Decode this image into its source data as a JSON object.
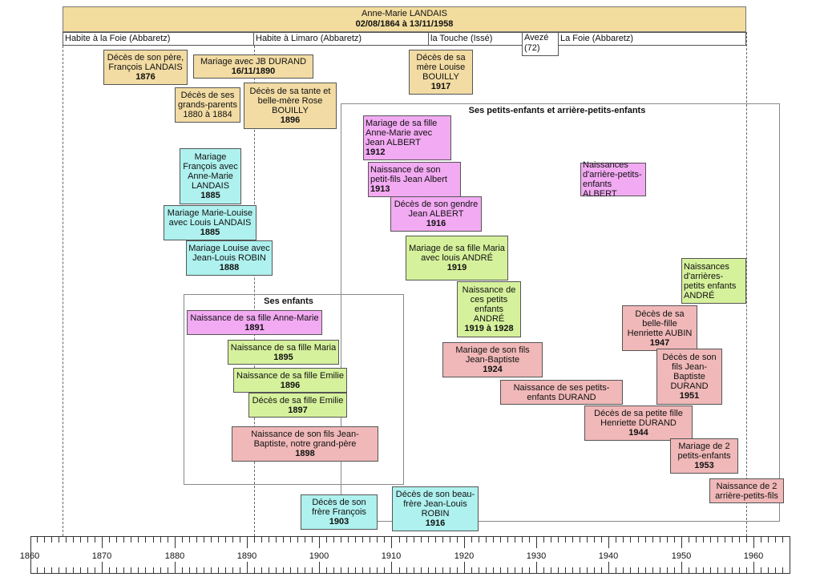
{
  "header": {
    "name": "Anne-Marie LANDAIS",
    "dates": "02/08/1864 à 13/11/1958"
  },
  "residences": [
    {
      "label": "Habite à la Foie (Abbaretz)"
    },
    {
      "label": "Habite à Limaro (Abbaretz)"
    },
    {
      "label": "la Touche (Issé)"
    },
    {
      "label": "Avezé (72)"
    },
    {
      "label": "La Foie (Abbaretz)"
    }
  ],
  "groups": {
    "grandchildren": "Ses petits-enfants et arrière-petits-enfants",
    "children": "Ses enfants"
  },
  "events": [
    {
      "text": "Décès de son père, François LANDAIS",
      "year": "1876",
      "color": "#f2dca4"
    },
    {
      "text": "Mariage avec JB DURAND",
      "year": "16/11/1890",
      "color": "#f2dca4"
    },
    {
      "text": "Décès de ses grands-parents 1880 à 1884",
      "year": "",
      "color": "#f2dca4"
    },
    {
      "text": "Décès de sa tante et belle-mère Rose BOUILLY",
      "year": "1896",
      "color": "#f2dca4"
    },
    {
      "text": "Décès de sa mère Louise BOUILLY",
      "year": "1917",
      "color": "#f2dca4"
    },
    {
      "text": "Mariage François avec Anne-Marie LANDAIS",
      "year": "1885",
      "color": "#aef1ee"
    },
    {
      "text": "Mariage Marie-Louise avec Louis LANDAIS",
      "year": "1885",
      "color": "#aef1ee"
    },
    {
      "text": "Mariage Louise avec Jean-Louis ROBIN",
      "year": "1888",
      "color": "#aef1ee"
    },
    {
      "text": "Mariage de sa fille Anne-Marie avec Jean ALBERT",
      "year": "1912",
      "color": "#f2aaf2"
    },
    {
      "text": "Naissance de son petit-fils Jean Albert",
      "year": "1913",
      "color": "#f2aaf2"
    },
    {
      "text": "Décès de son gendre Jean ALBERT",
      "year": "1916",
      "color": "#f2aaf2"
    },
    {
      "text": "Naissances d'arrière-petits-enfants ALBERT",
      "year": "",
      "color": "#f2aaf2"
    },
    {
      "text": "Mariage de sa fille Maria avec louis ANDRÉ",
      "year": "1919",
      "color": "#d6f19c"
    },
    {
      "text": "Naissance de ces petits enfants ANDRÉ",
      "year": "1919 à 1928",
      "color": "#d6f19c"
    },
    {
      "text": "Naissances d'arrières-petits enfants ANDRÉ",
      "year": "",
      "color": "#d6f19c"
    },
    {
      "text": "Décès de sa belle-fille Henriette AUBIN",
      "year": "1947",
      "color": "#f0b8b8"
    },
    {
      "text": "Décès de son fils Jean-Baptiste DURAND",
      "year": "1951",
      "color": "#f0b8b8"
    },
    {
      "text": "Mariage de son fils Jean-Baptiste",
      "year": "1924",
      "color": "#f0b8b8"
    },
    {
      "text": "Naissance de ses petits-enfants DURAND",
      "year": "",
      "color": "#f0b8b8"
    },
    {
      "text": "Décès de sa petite fille Henriette DURAND",
      "year": "1944",
      "color": "#f0b8b8"
    },
    {
      "text": "Mariage de 2 petits-enfants",
      "year": "1953",
      "color": "#f0b8b8"
    },
    {
      "text": "Naissance de 2 arrière-petits-fils",
      "year": "",
      "color": "#f0b8b8"
    },
    {
      "text": "Naissance de sa fille Anne-Marie",
      "year": "1891",
      "color": "#f2aaf2"
    },
    {
      "text": "Naissance de sa fille Maria",
      "year": "1895",
      "color": "#d6f19c"
    },
    {
      "text": "Naissance de sa fille Emilie",
      "year": "1896",
      "color": "#d6f19c"
    },
    {
      "text": "Décès de sa fille Emilie",
      "year": "1897",
      "color": "#d6f19c"
    },
    {
      "text": "Naissance de son fils Jean-Baptiste, notre grand-père",
      "year": "1898",
      "color": "#f0b8b8"
    },
    {
      "text": "Décès de son frère François",
      "year": "1903",
      "color": "#aef1ee"
    },
    {
      "text": "Décès de son beau-frère Jean-Louis ROBIN",
      "year": "1916",
      "color": "#aef1ee"
    }
  ],
  "axis": {
    "labels": [
      "1860",
      "1870",
      "1880",
      "1890",
      "1900",
      "1910",
      "1920",
      "1930",
      "1940",
      "1950",
      "1960"
    ]
  }
}
